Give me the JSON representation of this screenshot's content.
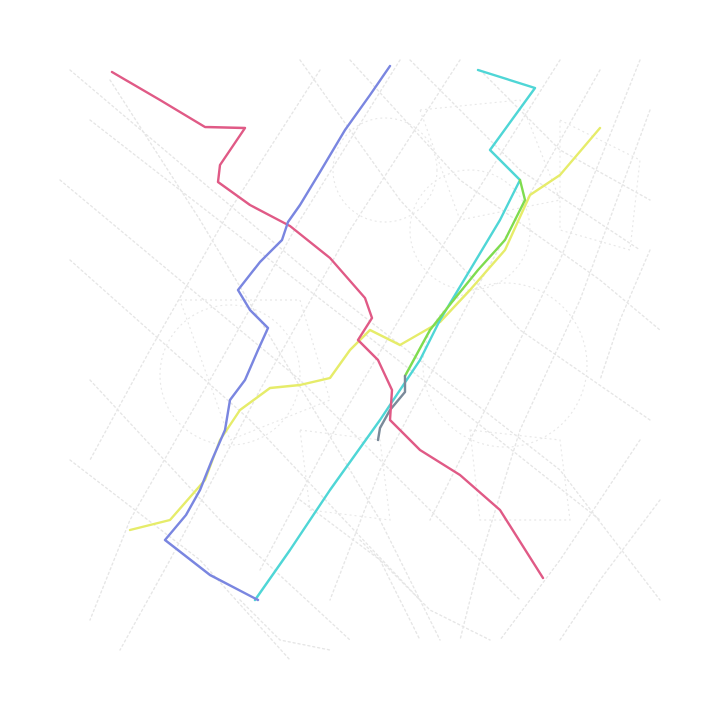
{
  "map": {
    "background": "#ffffff",
    "street_color": "#e6e6e6",
    "routes": [
      {
        "id": "route-pink",
        "color": "#e05a86"
      },
      {
        "id": "route-blue",
        "color": "#7a86e0"
      },
      {
        "id": "route-cyan",
        "color": "#4fd6d6"
      },
      {
        "id": "route-green",
        "color": "#7fdc4f"
      },
      {
        "id": "route-yellow",
        "color": "#e6ec6a"
      },
      {
        "id": "route-grey",
        "color": "#7a8a9a"
      }
    ]
  }
}
